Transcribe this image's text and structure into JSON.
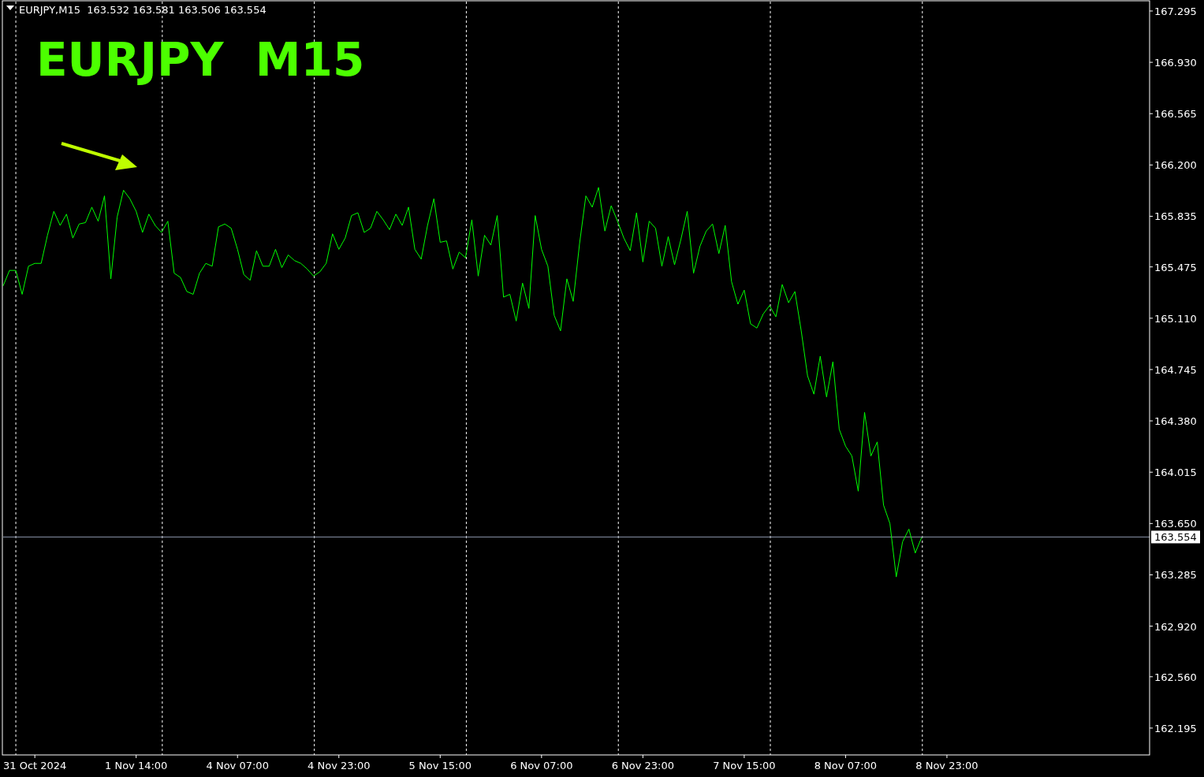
{
  "chart_data": {
    "type": "line",
    "title": "EURJPY  M15",
    "subtitle": "EURJPY,M15  163.532 163.581 163.506 163.554",
    "categories": [
      null,
      null,
      null,
      null,
      null,
      "31 Oct 2024",
      null,
      null,
      null,
      null,
      null,
      null,
      null,
      null,
      null,
      null,
      null,
      null,
      null,
      null,
      null,
      "1 Nov 14:00",
      null,
      null,
      null,
      null,
      null,
      null,
      null,
      null,
      null,
      null,
      null,
      null,
      null,
      null,
      null,
      "4 Nov 07:00",
      null,
      null,
      null,
      null,
      null,
      null,
      null,
      null,
      null,
      null,
      null,
      null,
      null,
      null,
      null,
      "4 Nov 23:00",
      null,
      null,
      null,
      null,
      null,
      null,
      null,
      null,
      null,
      null,
      null,
      null,
      null,
      null,
      null,
      "5 Nov 15:00",
      null,
      null,
      null,
      null,
      null,
      null,
      null,
      null,
      null,
      null,
      null,
      null,
      null,
      null,
      null,
      "6 Nov 07:00",
      null,
      null,
      null,
      null,
      null,
      null,
      null,
      null,
      null,
      null,
      null,
      null,
      null,
      null,
      null,
      "6 Nov 23:00",
      null,
      null,
      null,
      null,
      null,
      null,
      null,
      null,
      null,
      null,
      null,
      null,
      null,
      null,
      null,
      "7 Nov 15:00",
      null,
      null,
      null,
      null,
      null,
      null,
      null,
      null,
      null,
      null,
      null,
      null,
      null,
      null,
      null,
      "8 Nov 07:00",
      null,
      null,
      null,
      null,
      null,
      null,
      null,
      null,
      null,
      null,
      null,
      null,
      null,
      null,
      null,
      "8 Nov 23:00",
      null,
      null,
      null,
      null,
      null,
      null,
      null,
      null,
      null,
      null,
      null,
      null,
      null,
      null,
      null,
      null,
      null,
      null,
      null,
      null,
      null,
      null,
      null,
      null,
      null,
      null,
      null,
      null,
      null,
      null,
      null,
      null
    ],
    "series": [
      {
        "color": "#00ff00",
        "values": [
          165.34,
          165.45,
          165.45,
          165.28,
          165.48,
          165.5,
          165.5,
          165.7,
          165.87,
          165.77,
          165.85,
          165.68,
          165.78,
          165.79,
          165.9,
          165.8,
          165.98,
          165.39,
          165.83,
          166.02,
          165.96,
          165.87,
          165.72,
          165.85,
          165.77,
          165.72,
          165.8,
          165.43,
          165.4,
          165.3,
          165.28,
          165.43,
          165.5,
          165.48,
          165.76,
          165.78,
          165.75,
          165.6,
          165.42,
          165.38,
          165.59,
          165.48,
          165.48,
          165.6,
          165.47,
          165.56,
          165.52,
          165.5,
          165.46,
          165.41,
          165.44,
          165.5,
          165.71,
          165.6,
          165.68,
          165.84,
          165.86,
          165.72,
          165.75,
          165.87,
          165.81,
          165.74,
          165.85,
          165.77,
          165.9,
          165.6,
          165.53,
          165.77,
          165.96,
          165.65,
          165.66,
          165.46,
          165.58,
          165.54,
          165.81,
          165.41,
          165.7,
          165.63,
          165.84,
          165.26,
          165.28,
          165.09,
          165.36,
          165.18,
          165.84,
          165.6,
          165.48,
          165.13,
          165.02,
          165.39,
          165.23,
          165.64,
          165.98,
          165.9,
          166.04,
          165.73,
          165.91,
          165.8,
          165.68,
          165.59,
          165.86,
          165.51,
          165.8,
          165.75,
          165.48,
          165.69,
          165.49,
          165.67,
          165.87,
          165.43,
          165.62,
          165.73,
          165.78,
          165.57,
          165.77,
          165.37,
          165.21,
          165.31,
          165.07,
          165.04,
          165.14,
          165.2,
          165.12,
          165.35,
          165.22,
          165.3,
          165.02,
          164.7,
          164.57,
          164.84,
          164.55,
          164.8,
          164.32,
          164.2,
          164.13,
          163.88,
          164.44,
          164.13,
          164.23,
          163.78,
          163.65,
          163.27,
          163.52,
          163.61,
          163.44,
          163.55,
          null,
          null,
          null,
          null,
          null,
          null,
          null,
          null,
          null,
          null,
          null,
          null,
          null,
          null,
          null,
          null,
          null,
          null,
          null,
          null,
          null,
          null,
          null,
          null,
          null,
          null,
          null,
          null,
          null,
          null,
          null,
          null,
          null,
          null,
          null,
          null
        ]
      }
    ],
    "ylim": [
      162.004,
      167.362
    ],
    "yticks": [
      162.195,
      {
        "value": 162.56,
        "label": "162.560"
      },
      {
        "value": 162.92,
        "label": "162.920"
      },
      163.285,
      {
        "value": 163.65,
        "label": "163.650"
      },
      164.015,
      {
        "value": 164.38,
        "label": "164.380"
      },
      164.745,
      {
        "value": 165.11,
        "label": "165.110"
      },
      165.475,
      165.835,
      {
        "value": 166.2,
        "label": "166.200"
      },
      166.565,
      {
        "value": 166.93,
        "label": "166.930"
      },
      167.295
    ],
    "ref_lines": [
      {
        "axis": "y",
        "value": 163.554,
        "label": "163.554",
        "color": "#8a93a8"
      }
    ]
  }
}
